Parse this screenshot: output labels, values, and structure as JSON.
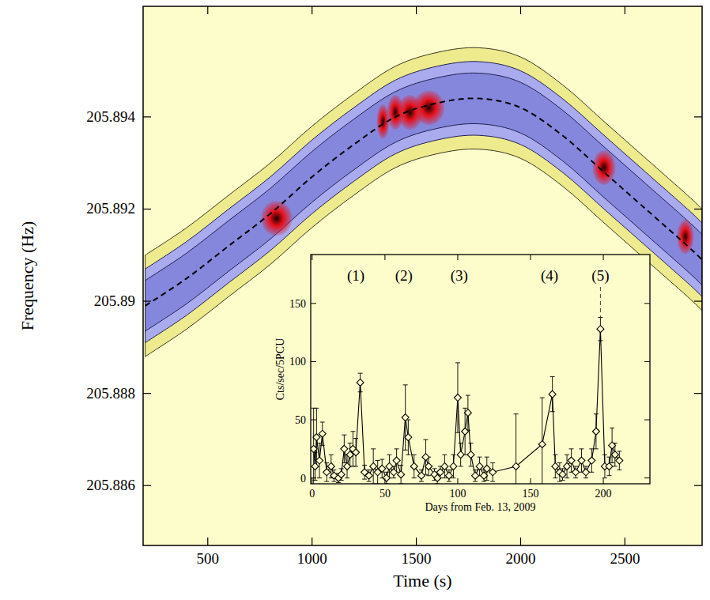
{
  "chart_data": [
    {
      "type": "spectrogram",
      "x_label": "Time (s)",
      "y_label": "Frequency (Hz)",
      "xlim": [
        190,
        2870
      ],
      "ylim": [
        205.8847,
        205.8964
      ],
      "xticks": [
        500,
        1000,
        1500,
        2000,
        2500
      ],
      "yticks": [
        205.886,
        205.888,
        205.89,
        205.892,
        205.894
      ],
      "series": [
        {
          "color": "#000000",
          "line_style": "dashed",
          "x": [
            200,
            400,
            600,
            800,
            1000,
            1200,
            1400,
            1600,
            1800,
            2000,
            2200,
            2400,
            2600,
            2800,
            2870
          ],
          "values": [
            205.8899,
            205.8905,
            205.8912,
            205.8919,
            205.8927,
            205.8934,
            205.894,
            205.8943,
            205.8944,
            205.8942,
            205.8936,
            205.8928,
            205.892,
            205.8912,
            205.8909
          ]
        }
      ],
      "band": {
        "halfwidths": [
          0.0011,
          0.0008,
          0.00055
        ],
        "colors": [
          "#eeea8e",
          "#a9abee",
          "#8587dd"
        ]
      },
      "peaks": {
        "color": "#e8101a",
        "x": [
          830,
          1340,
          1400,
          1470,
          1560,
          2400,
          2790
        ],
        "y": [
          205.8918,
          205.8939,
          205.8941,
          205.8941,
          205.8942,
          205.8929,
          205.8914
        ],
        "duration": [
          150,
          60,
          80,
          120,
          150,
          110,
          80
        ]
      }
    },
    {
      "type": "scatter",
      "x_label": "Days from Feb. 13, 2009",
      "y_label": "Cts/sec/5PCU",
      "xlim": [
        -1,
        232
      ],
      "ylim": [
        -5,
        192
      ],
      "xticks": [
        0,
        50,
        100,
        150,
        200
      ],
      "yticks": [
        0,
        50,
        100,
        150
      ],
      "marker": "diamond",
      "line_style": "solid",
      "color": "#000000",
      "x": [
        1,
        2,
        3,
        5,
        7,
        10,
        13,
        15,
        18,
        20,
        22,
        24,
        26,
        28,
        30,
        33,
        36,
        39,
        42,
        45,
        48,
        51,
        53,
        56,
        58,
        61,
        64,
        66,
        70,
        75,
        78,
        80,
        84,
        86,
        88,
        91,
        94,
        97,
        100,
        102,
        105,
        107,
        109,
        112,
        115,
        118,
        120,
        124,
        140,
        158,
        165,
        167,
        170,
        172,
        175,
        178,
        181,
        185,
        188,
        192,
        195,
        198,
        201,
        204,
        206,
        208,
        211
      ],
      "values": [
        25,
        10,
        35,
        15,
        38,
        5,
        10,
        2,
        0,
        3,
        25,
        10,
        20,
        25,
        22,
        82,
        5,
        2,
        10,
        5,
        8,
        0,
        10,
        5,
        15,
        3,
        52,
        35,
        10,
        2,
        18,
        10,
        3,
        0,
        5,
        10,
        2,
        10,
        69,
        20,
        40,
        56,
        20,
        2,
        10,
        2,
        8,
        5,
        10,
        29,
        72,
        10,
        5,
        3,
        10,
        15,
        5,
        15,
        5,
        15,
        40,
        128,
        10,
        10,
        28,
        20,
        15
      ],
      "errors": [
        35,
        12,
        25,
        15,
        10,
        8,
        10,
        5,
        4,
        5,
        12,
        10,
        10,
        15,
        12,
        8,
        6,
        5,
        15,
        10,
        8,
        5,
        10,
        5,
        10,
        8,
        28,
        15,
        10,
        5,
        15,
        8,
        5,
        5,
        5,
        10,
        5,
        10,
        30,
        10,
        20,
        15,
        10,
        5,
        8,
        5,
        10,
        8,
        45,
        40,
        15,
        10,
        8,
        5,
        10,
        10,
        5,
        10,
        5,
        10,
        15,
        10,
        10,
        8,
        15,
        10,
        8
      ],
      "annotations": [
        {
          "text": "(1)",
          "x": 30
        },
        {
          "text": "(2)",
          "x": 63
        },
        {
          "text": "(3)",
          "x": 101
        },
        {
          "text": "(4)",
          "x": 163
        },
        {
          "text": "(5)",
          "x": 198,
          "line_style": "dashed"
        }
      ]
    }
  ]
}
